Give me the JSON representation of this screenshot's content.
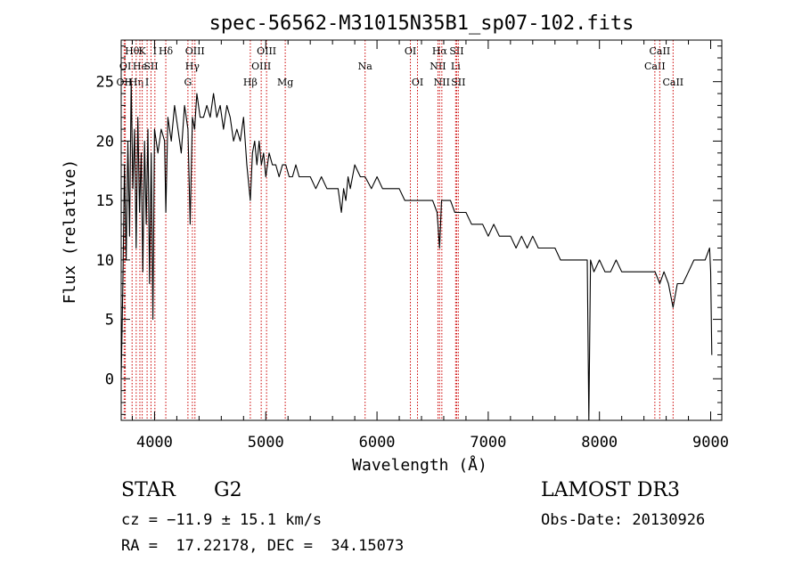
{
  "chart_data": {
    "type": "line",
    "title": "spec-56562-M31015N35B1_sp07-102.fits",
    "xlabel": "Wavelength (Å)",
    "ylabel": "Flux (relative)",
    "xlim": [
      3700,
      9100
    ],
    "ylim": [
      -3.5,
      28.5
    ],
    "xticks": [
      4000,
      5000,
      6000,
      7000,
      8000,
      9000
    ],
    "xtick_labels": [
      "4000",
      "5000",
      "6000",
      "7000",
      "8000",
      "9000"
    ],
    "yticks": [
      0,
      5,
      10,
      15,
      20,
      25
    ],
    "ytick_labels": [
      "0",
      "5",
      "10",
      "15",
      "20",
      "25"
    ],
    "grid": false,
    "line_color": "#000000",
    "marker_color": "#cc0000",
    "series": [
      {
        "name": "spectrum",
        "x": [
          3700,
          3715,
          3730,
          3745,
          3760,
          3775,
          3790,
          3805,
          3820,
          3835,
          3850,
          3865,
          3880,
          3895,
          3910,
          3925,
          3940,
          3955,
          3970,
          3985,
          4000,
          4030,
          4060,
          4090,
          4101,
          4120,
          4150,
          4180,
          4210,
          4240,
          4270,
          4300,
          4320,
          4340,
          4360,
          4380,
          4410,
          4440,
          4470,
          4500,
          4530,
          4560,
          4590,
          4620,
          4650,
          4680,
          4710,
          4740,
          4770,
          4800,
          4830,
          4861,
          4880,
          4900,
          4920,
          4940,
          4960,
          4980,
          5000,
          5030,
          5060,
          5090,
          5120,
          5150,
          5180,
          5210,
          5240,
          5270,
          5300,
          5350,
          5400,
          5450,
          5500,
          5550,
          5600,
          5650,
          5680,
          5700,
          5720,
          5740,
          5760,
          5800,
          5850,
          5893,
          5950,
          6000,
          6050,
          6100,
          6150,
          6200,
          6250,
          6300,
          6350,
          6400,
          6450,
          6500,
          6540,
          6563,
          6580,
          6620,
          6660,
          6700,
          6750,
          6800,
          6850,
          6900,
          6950,
          7000,
          7050,
          7100,
          7150,
          7200,
          7250,
          7300,
          7350,
          7400,
          7450,
          7500,
          7550,
          7600,
          7650,
          7700,
          7750,
          7800,
          7850,
          7890,
          7905,
          7920,
          7950,
          8000,
          8050,
          8100,
          8150,
          8200,
          8250,
          8300,
          8350,
          8400,
          8450,
          8500,
          8542,
          8580,
          8620,
          8662,
          8700,
          8750,
          8800,
          8850,
          8900,
          8950,
          8990,
          9000,
          9010
        ],
        "y": [
          0,
          8,
          18,
          10,
          20,
          12,
          25,
          16,
          21,
          11,
          22,
          14,
          19,
          9,
          20,
          13,
          21,
          8,
          19,
          5,
          21,
          19,
          21,
          20,
          14,
          22,
          20,
          23,
          21,
          19,
          23,
          21,
          13,
          22,
          21,
          24,
          22,
          22,
          23,
          22,
          24,
          22,
          23,
          21,
          23,
          22,
          20,
          21,
          20,
          22,
          18,
          15,
          19,
          20,
          18,
          20,
          18,
          19,
          17,
          19,
          18,
          18,
          17,
          18,
          18,
          17,
          17,
          18,
          17,
          17,
          17,
          16,
          17,
          16,
          16,
          16,
          14,
          16,
          15,
          17,
          16,
          18,
          17,
          17,
          16,
          17,
          16,
          16,
          16,
          16,
          15,
          15,
          15,
          15,
          15,
          15,
          14,
          11,
          15,
          15,
          15,
          14,
          14,
          14,
          13,
          13,
          13,
          12,
          13,
          12,
          12,
          12,
          11,
          12,
          11,
          12,
          11,
          11,
          11,
          11,
          10,
          10,
          10,
          10,
          10,
          10,
          -3.5,
          10,
          9,
          10,
          9,
          9,
          10,
          9,
          9,
          9,
          9,
          9,
          9,
          9,
          8,
          9,
          8,
          6,
          8,
          8,
          9,
          10,
          10,
          10,
          11,
          9,
          2
        ]
      }
    ],
    "line_markers": [
      {
        "wavelength": 3727,
        "label": "OII",
        "row": 3
      },
      {
        "wavelength": 3737,
        "label": "OI",
        "row": 2
      },
      {
        "wavelength": 3798,
        "label": "Hθ",
        "row": 1
      },
      {
        "wavelength": 3835,
        "label": "Hη",
        "row": 3
      },
      {
        "wavelength": 3868,
        "label": "He",
        "row": 2
      },
      {
        "wavelength": 3889,
        "label": "K",
        "row": 1
      },
      {
        "wavelength": 3933,
        "label": "I",
        "row": 3
      },
      {
        "wavelength": 3968,
        "label": "SII",
        "row": 2
      },
      {
        "wavelength": 4003,
        "label": "I",
        "row": 1
      },
      {
        "wavelength": 4101,
        "label": "Hδ",
        "row": 1
      },
      {
        "wavelength": 4300,
        "label": "G",
        "row": 3
      },
      {
        "wavelength": 4340,
        "label": "Hγ",
        "row": 2
      },
      {
        "wavelength": 4363,
        "label": "OIII",
        "row": 1
      },
      {
        "wavelength": 4861,
        "label": "Hβ",
        "row": 3
      },
      {
        "wavelength": 4959,
        "label": "OIII",
        "row": 2
      },
      {
        "wavelength": 5007,
        "label": "OIII",
        "row": 1
      },
      {
        "wavelength": 5175,
        "label": "Mg",
        "row": 3
      },
      {
        "wavelength": 5893,
        "label": "Na",
        "row": 2
      },
      {
        "wavelength": 6300,
        "label": "OI",
        "row": 1
      },
      {
        "wavelength": 6364,
        "label": "OI",
        "row": 3
      },
      {
        "wavelength": 6548,
        "label": "NII",
        "row": 2
      },
      {
        "wavelength": 6563,
        "label": "Hα",
        "row": 1
      },
      {
        "wavelength": 6583,
        "label": "NII",
        "row": 3
      },
      {
        "wavelength": 6707,
        "label": "Li",
        "row": 2
      },
      {
        "wavelength": 6716,
        "label": "SII",
        "row": 1
      },
      {
        "wavelength": 6731,
        "label": "SII",
        "row": 3
      },
      {
        "wavelength": 8498,
        "label": "CaII",
        "row": 2
      },
      {
        "wavelength": 8542,
        "label": "CaII",
        "row": 1
      },
      {
        "wavelength": 8662,
        "label": "CaII",
        "row": 3
      }
    ]
  },
  "info": {
    "object_class": "STAR",
    "subclass": "G2",
    "survey": "LAMOST DR3",
    "redshift_line": "cz = −11.9 ± 15.1 km/s",
    "obs_date_line": "Obs-Date: 20130926",
    "coords_line": "RA =  17.22178, DEC =  34.15073"
  }
}
